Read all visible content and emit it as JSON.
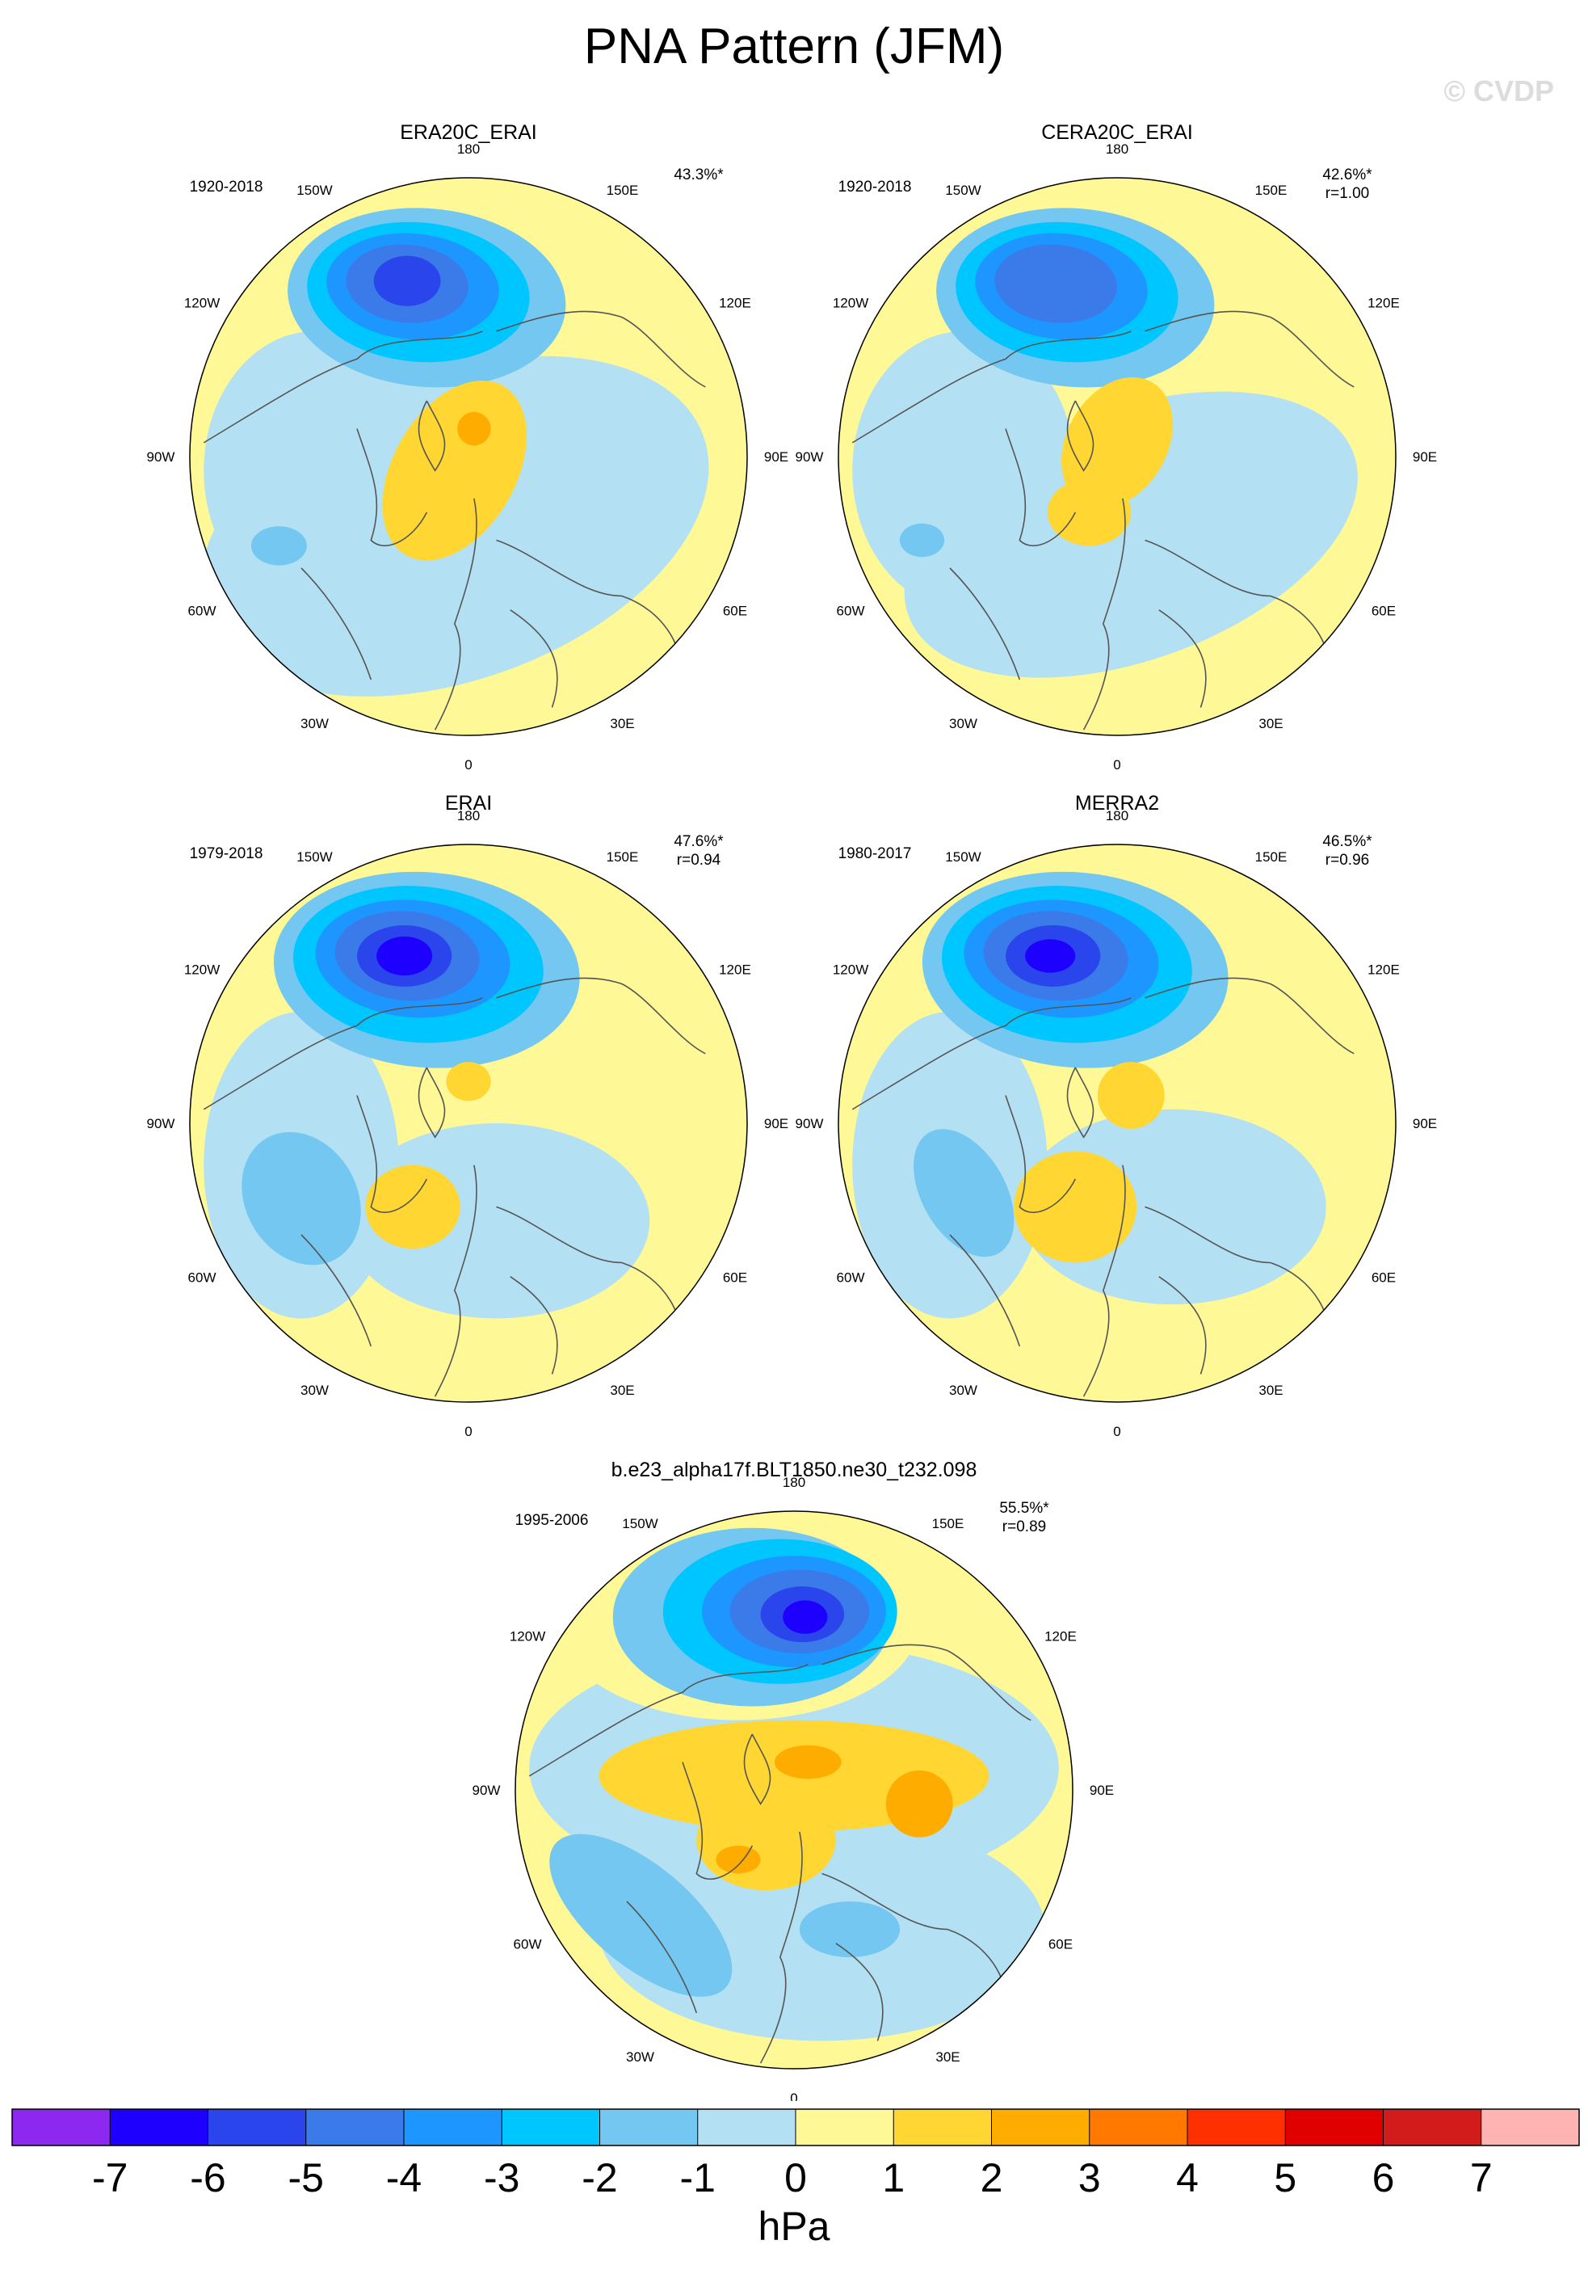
{
  "page": {
    "title": "PNA Pattern (JFM)",
    "copyright": "© CVDP"
  },
  "chart_data": {
    "type": "heatmap",
    "projection": "north polar stereographic",
    "units": "hPa",
    "longitude_labels": [
      "180",
      "150E",
      "120E",
      "90E",
      "60E",
      "30E",
      "0",
      "30W",
      "60W",
      "90W",
      "120W",
      "150W"
    ],
    "panels": [
      {
        "title": "ERA20C_ERAI",
        "years": "1920-2018",
        "variance": "43.3%*",
        "corr": ""
      },
      {
        "title": "CERA20C_ERAI",
        "years": "1920-2018",
        "variance": "42.6%*",
        "corr": "r=1.00"
      },
      {
        "title": "ERAI",
        "years": "1979-2018",
        "variance": "47.6%*",
        "corr": "r=0.94"
      },
      {
        "title": "MERRA2",
        "years": "1980-2017",
        "variance": "46.5%*",
        "corr": "r=0.96"
      },
      {
        "title": "b.e23_alpha17f.BLT1850.ne30_t232.098",
        "years": "1995-2006",
        "variance": "55.5%*",
        "corr": "r=0.89"
      }
    ],
    "colorbar": {
      "ticks": [
        "-7",
        "-6",
        "-5",
        "-4",
        "-3",
        "-2",
        "-1",
        "0",
        "1",
        "2",
        "3",
        "4",
        "5",
        "6",
        "7"
      ],
      "colors": [
        "#8c28ef",
        "#1e00ff",
        "#2b45ec",
        "#3a7ae9",
        "#1e96ff",
        "#00c6ff",
        "#73c7f0",
        "#b4e0f4",
        "#fff896",
        "#ffd632",
        "#ffac00",
        "#ff7800",
        "#ff3000",
        "#e10000",
        "#d21c1c",
        "#ffb4b4"
      ],
      "label": "hPa"
    }
  }
}
